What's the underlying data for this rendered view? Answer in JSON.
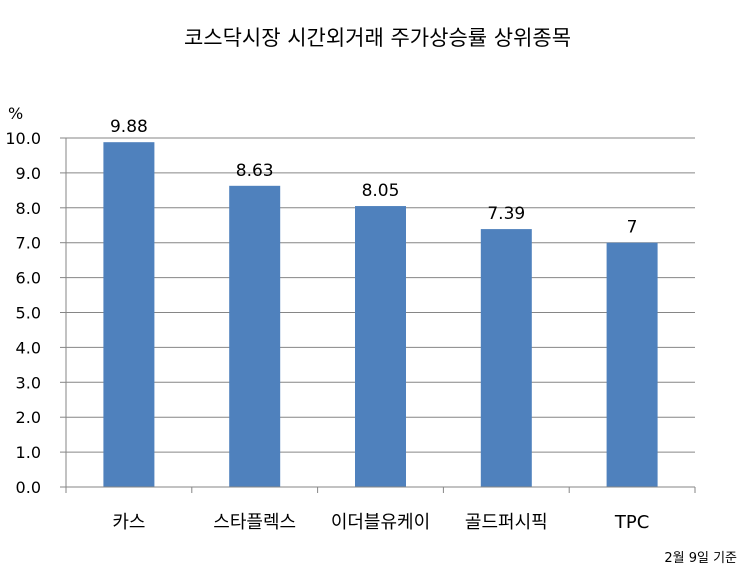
{
  "chart_data": {
    "type": "bar",
    "title": "코스닥시장 시간외거래  주가상승률 상위종목",
    "ylabel": "%",
    "categories": [
      "카스",
      "스타플렉스",
      "이더블유케이",
      "골드퍼시픽",
      "TPC"
    ],
    "values": [
      9.88,
      8.63,
      8.05,
      7.39,
      7
    ],
    "data_labels": [
      "9.88",
      "8.63",
      "8.05",
      "7.39",
      "7"
    ],
    "y_ticks": [
      "0.0",
      "1.0",
      "2.0",
      "3.0",
      "4.0",
      "5.0",
      "6.0",
      "7.0",
      "8.0",
      "9.0",
      "10.0"
    ],
    "ylim": [
      0,
      10
    ],
    "grid": true,
    "legend": "none",
    "bar_color": "#4F81BD",
    "note": "2월 9일 기준"
  }
}
